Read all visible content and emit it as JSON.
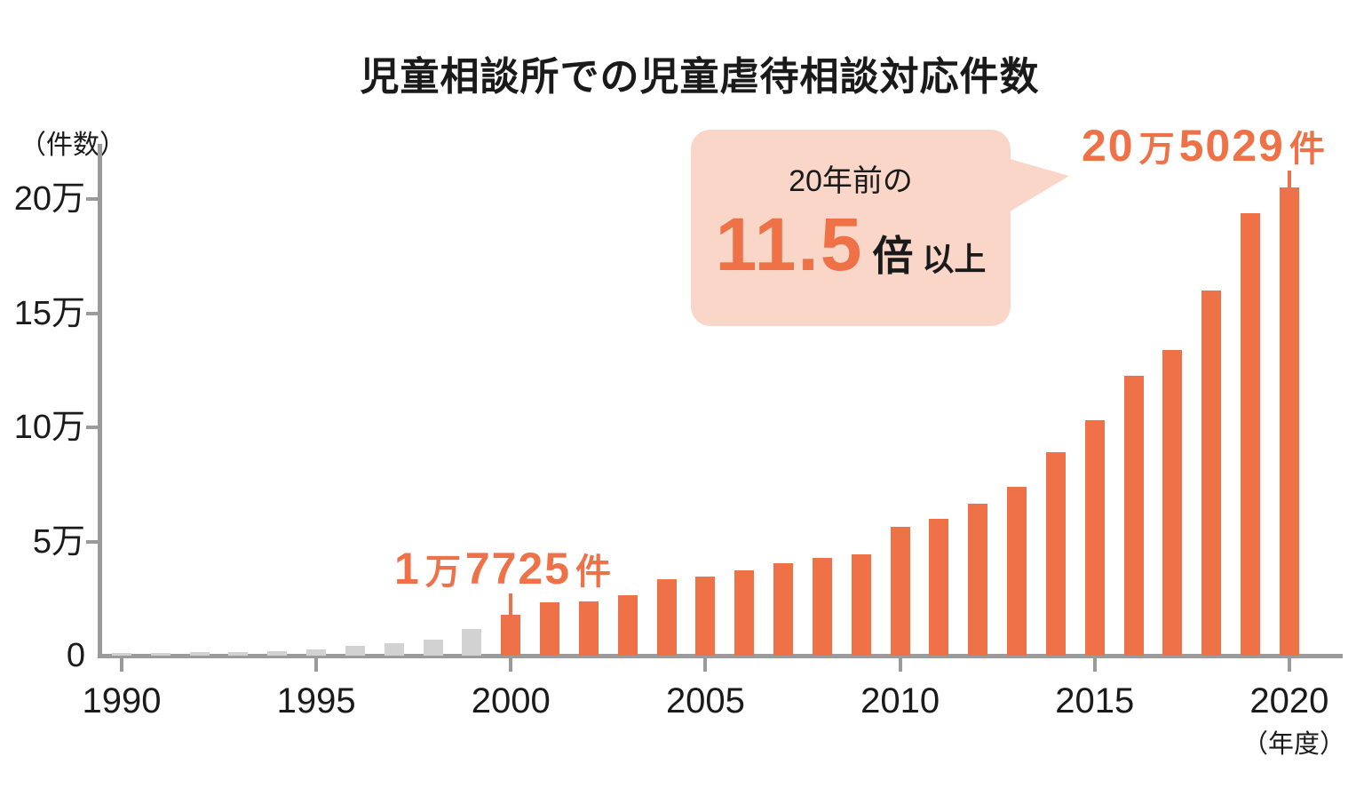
{
  "title": "児童相談所での児童虐待相談対応件数",
  "y_axis": {
    "unit_label": "（件数）"
  },
  "x_axis": {
    "unit_label": "（年度）"
  },
  "annotations": {
    "label_2000": {
      "num1": "1",
      "unit1": "万",
      "num2": "7725",
      "unit2": "件"
    },
    "label_2020": {
      "num1": "20",
      "unit1": "万",
      "num2": "5029",
      "unit2": "件"
    },
    "bubble": {
      "line1": "20年前の",
      "multiplier": "11.5",
      "times_label": "倍",
      "suffix": "以上"
    }
  },
  "colors": {
    "bar_highlight": "#EF7148",
    "bar_default": "#D2D2D2",
    "axis": "#9B9B9B",
    "bubble_bg": "#FAD6C8",
    "accent_text": "#EF7148",
    "text": "#1A1A1A"
  },
  "chart_data": {
    "type": "bar",
    "title": "児童相談所での児童虐待相談対応件数",
    "xlabel": "年度",
    "ylabel": "件数",
    "x": [
      1990,
      1991,
      1992,
      1993,
      1994,
      1995,
      1996,
      1997,
      1998,
      1999,
      2000,
      2001,
      2002,
      2003,
      2004,
      2005,
      2006,
      2007,
      2008,
      2009,
      2010,
      2011,
      2012,
      2013,
      2014,
      2015,
      2016,
      2017,
      2018,
      2019,
      2020
    ],
    "values": [
      1101,
      1171,
      1372,
      1611,
      1961,
      2722,
      4102,
      5352,
      6932,
      11631,
      17725,
      23274,
      23738,
      26569,
      33408,
      34472,
      37323,
      40639,
      42664,
      44211,
      56384,
      59919,
      66701,
      73802,
      88931,
      103286,
      122575,
      133778,
      159838,
      193780,
      205029
    ],
    "highlight_from_x": 2000,
    "x_ticks": [
      1990,
      1995,
      2000,
      2005,
      2010,
      2015,
      2020
    ],
    "y_ticks": [
      {
        "value": 0,
        "label": "0"
      },
      {
        "value": 50000,
        "label": "5万"
      },
      {
        "value": 100000,
        "label": "10万"
      },
      {
        "value": 150000,
        "label": "15万"
      },
      {
        "value": 200000,
        "label": "20万"
      }
    ],
    "ylim": [
      0,
      210000
    ],
    "grid": false,
    "legend": false,
    "annotated_points": [
      {
        "x": 2000,
        "value": 17725,
        "label": "1万7725件"
      },
      {
        "x": 2020,
        "value": 205029,
        "label": "20万5029件"
      }
    ],
    "callout_text": "20年前の11.5倍以上"
  }
}
